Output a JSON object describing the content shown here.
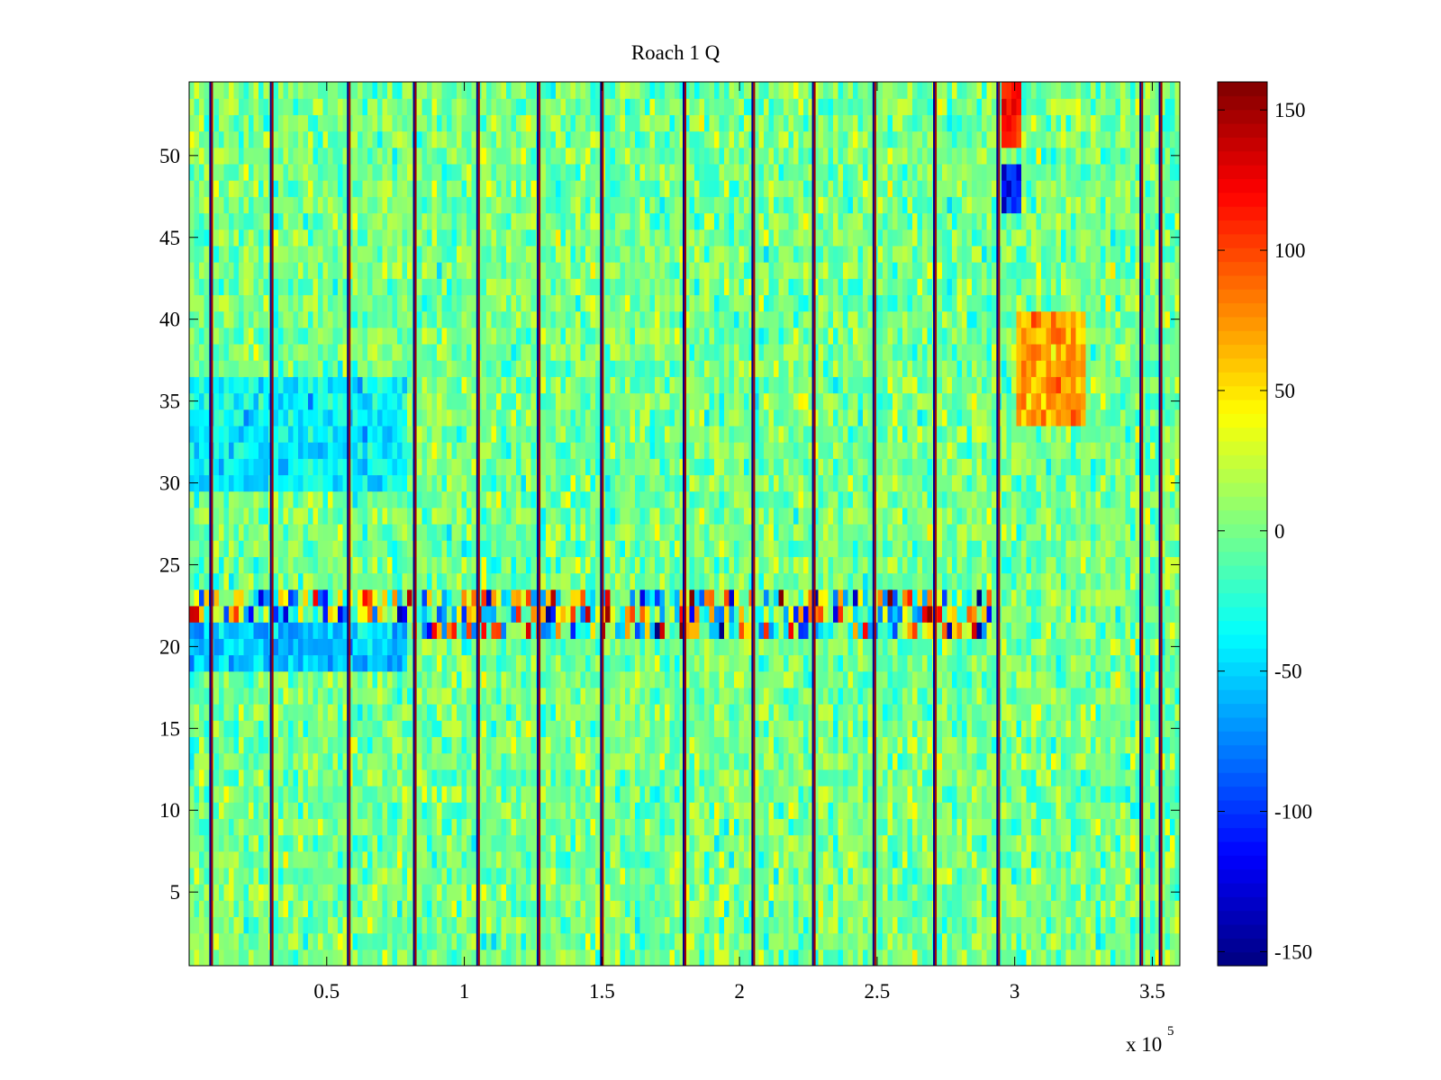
{
  "chart_data": {
    "type": "heatmap",
    "title": "Roach 1 Q",
    "xlabel": "",
    "ylabel": "",
    "x_exponent_label": {
      "base": "x 10",
      "exponent": "5"
    },
    "xlim": [
      0,
      3.6
    ],
    "ylim": [
      0.5,
      54.5
    ],
    "x_ticks": [
      0.5,
      1,
      1.5,
      2,
      2.5,
      3,
      3.5
    ],
    "x_tick_labels": [
      "0.5",
      "1",
      "1.5",
      "2",
      "2.5",
      "3",
      "3.5"
    ],
    "y_ticks": [
      5,
      10,
      15,
      20,
      25,
      30,
      35,
      40,
      45,
      50
    ],
    "y_tick_labels": [
      "5",
      "10",
      "15",
      "20",
      "25",
      "30",
      "35",
      "40",
      "45",
      "50"
    ],
    "rows": 54,
    "colormap": "jet",
    "clim": [
      -155,
      160
    ],
    "colorbar": {
      "ticks": [
        150,
        100,
        50,
        0,
        -50,
        -100,
        -150
      ],
      "tick_labels": [
        "150",
        "100",
        "50",
        "0",
        "-50",
        "-100",
        "-150"
      ],
      "location": "right"
    },
    "background_mean": 0,
    "column_gaps_x": [
      0.08,
      0.3,
      0.58,
      0.82,
      1.05,
      1.27,
      1.5,
      1.8,
      2.05,
      2.27,
      2.49,
      2.71,
      2.94,
      3.46,
      3.53
    ],
    "features": [
      {
        "description": "noisy row band",
        "rows": [
          21,
          23
        ],
        "x_range": [
          0,
          2.92
        ],
        "amplitude": 120
      },
      {
        "description": "positive block",
        "rows": [
          34,
          40
        ],
        "x_range": [
          3.0,
          3.25
        ],
        "value": 70
      },
      {
        "description": "positive block",
        "rows": [
          51,
          54
        ],
        "x_range": [
          2.96,
          3.02
        ],
        "value": 110
      },
      {
        "description": "negative block",
        "rows": [
          47,
          49
        ],
        "x_range": [
          2.96,
          3.02
        ],
        "value": -110
      },
      {
        "description": "negative block",
        "rows": [
          19,
          21
        ],
        "x_range": [
          0,
          0.8
        ],
        "value": -55
      },
      {
        "description": "negative block",
        "rows": [
          30,
          36
        ],
        "x_range": [
          0,
          0.8
        ],
        "value": -40
      }
    ]
  }
}
